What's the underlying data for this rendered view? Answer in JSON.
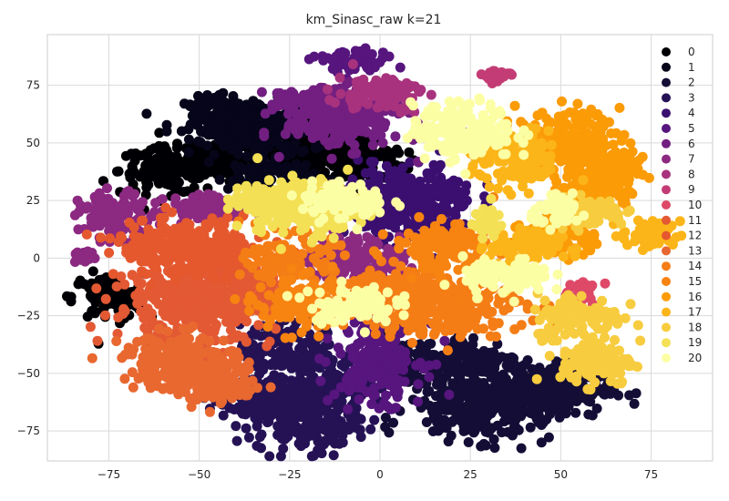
{
  "chart_data": {
    "type": "scatter",
    "title": "km_Sinasc_raw k=21",
    "xlabel": "",
    "ylabel": "",
    "xlim": [
      -92,
      92
    ],
    "ylim": [
      -88,
      97
    ],
    "x_ticks": [
      -75,
      -50,
      -25,
      0,
      25,
      50,
      75
    ],
    "y_ticks": [
      -75,
      -50,
      -25,
      0,
      25,
      50,
      75
    ],
    "x_tick_labels": [
      "−75",
      "−50",
      "−25",
      "0",
      "25",
      "50",
      "75"
    ],
    "y_tick_labels": [
      "−75",
      "−50",
      "−25",
      "0",
      "25",
      "50",
      "75"
    ],
    "grid": true,
    "legend_position": "right",
    "series": [
      {
        "name": "0",
        "color": "#000004",
        "clusters": [
          [
            -17,
            47,
            8,
            5,
            260
          ],
          [
            -58,
            38,
            7,
            5,
            160
          ],
          [
            -42,
            43,
            6,
            4,
            100
          ],
          [
            -75,
            -17,
            5,
            5,
            110
          ],
          [
            -5,
            42,
            6,
            5,
            100
          ],
          [
            -22,
            55,
            6,
            4,
            90
          ]
        ]
      },
      {
        "name": "1",
        "color": "#06051a",
        "clusters": [
          [
            -35,
            55,
            8,
            7,
            220
          ],
          [
            -42,
            62,
            6,
            4,
            100
          ],
          [
            -30,
            35,
            6,
            4,
            80
          ]
        ]
      },
      {
        "name": "2",
        "color": "#140e36",
        "clusters": [
          [
            28,
            -65,
            10,
            7,
            280
          ],
          [
            48,
            -57,
            8,
            6,
            200
          ],
          [
            25,
            -45,
            7,
            6,
            160
          ],
          [
            8,
            -45,
            5,
            5,
            80
          ]
        ]
      },
      {
        "name": "3",
        "color": "#251255",
        "clusters": [
          [
            -20,
            -70,
            7,
            7,
            200
          ],
          [
            -35,
            -60,
            6,
            6,
            150
          ],
          [
            -25,
            -40,
            7,
            6,
            150
          ],
          [
            -15,
            -55,
            6,
            6,
            120
          ]
        ]
      },
      {
        "name": "4",
        "color": "#3b0f70",
        "clusters": [
          [
            10,
            25,
            8,
            8,
            260
          ],
          [
            0,
            22,
            6,
            6,
            120
          ]
        ]
      },
      {
        "name": "5",
        "color": "#57157e",
        "clusters": [
          [
            0,
            -42,
            6,
            10,
            220
          ],
          [
            -8,
            85,
            5,
            3,
            60
          ]
        ]
      },
      {
        "name": "6",
        "color": "#721f81",
        "clusters": [
          [
            -10,
            60,
            8,
            6,
            240
          ],
          [
            -20,
            68,
            6,
            3,
            80
          ]
        ]
      },
      {
        "name": "7",
        "color": "#8c2981",
        "clusters": [
          [
            -73,
            18,
            5,
            5,
            120
          ],
          [
            -47,
            22,
            6,
            3,
            80
          ],
          [
            -7,
            0,
            7,
            5,
            160
          ],
          [
            -82,
            0,
            1.5,
            1.5,
            20
          ]
        ]
      },
      {
        "name": "8",
        "color": "#a8327d",
        "clusters": [
          [
            0,
            72,
            6,
            4,
            100
          ]
        ]
      },
      {
        "name": "9",
        "color": "#c43c75",
        "clusters": [
          [
            32,
            79,
            2,
            1.5,
            30
          ]
        ]
      },
      {
        "name": "10",
        "color": "#de4968",
        "clusters": [
          [
            55,
            -15,
            3,
            3,
            30
          ]
        ]
      },
      {
        "name": "11",
        "color": "#e35933",
        "clusters": [
          [
            -52,
            -20,
            11,
            9,
            300
          ],
          [
            -42,
            -15,
            8,
            6,
            200
          ]
        ]
      },
      {
        "name": "12",
        "color": "#e5582e",
        "clusters": [
          [
            -57,
            5,
            8,
            6,
            200
          ],
          [
            -45,
            2,
            6,
            5,
            120
          ]
        ]
      },
      {
        "name": "13",
        "color": "#e86830",
        "clusters": [
          [
            -55,
            -45,
            8,
            6,
            200
          ],
          [
            -45,
            -55,
            6,
            4,
            100
          ]
        ]
      },
      {
        "name": "14",
        "color": "#f57d15",
        "clusters": [
          [
            18,
            -20,
            11,
            7,
            260
          ],
          [
            5,
            -15,
            7,
            6,
            160
          ],
          [
            -25,
            0,
            6,
            5,
            120
          ]
        ]
      },
      {
        "name": "15",
        "color": "#f78311",
        "clusters": [
          [
            -22,
            -20,
            6,
            6,
            150
          ],
          [
            18,
            5,
            7,
            5,
            150
          ]
        ]
      },
      {
        "name": "16",
        "color": "#fb9b06",
        "clusters": [
          [
            52,
            50,
            7,
            7,
            200
          ],
          [
            60,
            30,
            5,
            5,
            120
          ],
          [
            50,
            10,
            5,
            5,
            100
          ],
          [
            65,
            40,
            4,
            3,
            80
          ]
        ]
      },
      {
        "name": "17",
        "color": "#fcb519",
        "clusters": [
          [
            38,
            42,
            6,
            6,
            150
          ],
          [
            40,
            5,
            5,
            4,
            100
          ],
          [
            75,
            10,
            4,
            3,
            60
          ]
        ]
      },
      {
        "name": "18",
        "color": "#f7cc3e",
        "clusters": [
          [
            60,
            -45,
            5,
            5,
            130
          ],
          [
            55,
            -25,
            6,
            5,
            120
          ],
          [
            58,
            20,
            5,
            3,
            80
          ]
        ]
      },
      {
        "name": "19",
        "color": "#f3e055",
        "clusters": [
          [
            -20,
            22,
            7,
            6,
            200
          ],
          [
            -32,
            25,
            5,
            4,
            100
          ],
          [
            30,
            15,
            2,
            3,
            40
          ]
        ]
      },
      {
        "name": "20",
        "color": "#fcfea4",
        "clusters": [
          [
            23,
            55,
            7,
            6,
            200
          ],
          [
            -8,
            -20,
            6,
            4,
            100
          ],
          [
            -10,
            25,
            6,
            4,
            100
          ],
          [
            35,
            -8,
            6,
            4,
            100
          ],
          [
            50,
            20,
            4,
            3,
            50
          ]
        ]
      }
    ]
  }
}
